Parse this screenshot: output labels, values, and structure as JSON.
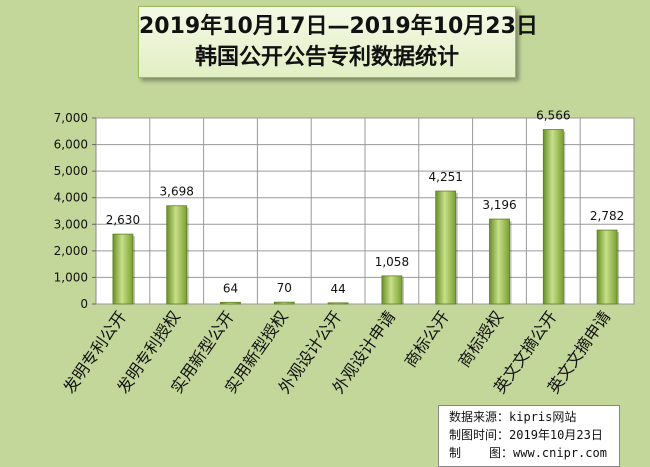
{
  "title": {
    "line1": "2019年10月17日—2019年10月23日",
    "line2": "韩国公开公告专利数据统计"
  },
  "source_box": {
    "source_label": "数据来源：",
    "source_value": "kipris网站",
    "time_label": "制图时间：",
    "time_value": "2019年10月23日",
    "maker_label_1": "制",
    "maker_label_2": "图：",
    "maker_value": "www.cnipr.com"
  },
  "colors": {
    "background": "#c4d79b",
    "plot_area": "#ffffff",
    "bar": "#9bbb59",
    "bar_dark": "#6a8f26",
    "bar_light": "#d6e9a8"
  },
  "chart_data": {
    "type": "bar",
    "categories": [
      "发明专利公开",
      "发明专利授权",
      "实用新型公开",
      "实用新型授权",
      "外观设计公开",
      "外观设计申请",
      "商标公开",
      "商标授权",
      "英文文摘公开",
      "英文文摘申请"
    ],
    "values": [
      2630,
      3698,
      64,
      70,
      44,
      1058,
      4251,
      3196,
      6566,
      2782
    ],
    "data_labels": [
      "2,630",
      "3,698",
      "64",
      "70",
      "44",
      "1,058",
      "4,251",
      "3,196",
      "6,566",
      "2,782"
    ],
    "y_ticks": [
      "0",
      "1,000",
      "2,000",
      "3,000",
      "4,000",
      "5,000",
      "6,000",
      "7,000"
    ],
    "ylim": [
      0,
      7000
    ],
    "grid": true,
    "legend": "none",
    "title": "2019年10月17日—2019年10月23日 韩国公开公告专利数据统计"
  }
}
